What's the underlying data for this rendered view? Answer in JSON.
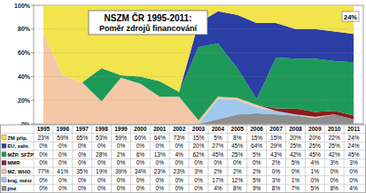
{
  "chart_data": {
    "type": "area",
    "stacked": true,
    "grid": true,
    "data_labels": true,
    "title": "NSZM ČR 1995-2011:",
    "subtitle": "Poměr zdrojů financování",
    "annotations": [
      "24%"
    ],
    "categories": [
      "1995",
      "1996",
      "1997",
      "1998",
      "1999",
      "2000",
      "2001",
      "2002",
      "2003",
      "2004",
      "2005",
      "2006",
      "2007",
      "2008",
      "2009",
      "2010",
      "2011"
    ],
    "ylim": [
      0,
      100
    ],
    "yticks": [
      {
        "value": 0,
        "label": "0%"
      },
      {
        "value": 20,
        "label": "20%"
      },
      {
        "value": 40,
        "label": "40%"
      },
      {
        "value": 60,
        "label": "60%"
      },
      {
        "value": 80,
        "label": "80%"
      },
      {
        "value": 100,
        "label": "100%"
      }
    ],
    "series": [
      {
        "name": "ZM příp.",
        "color": "#f2e44c",
        "values": [
          23,
          59,
          65,
          53,
          59,
          60,
          64,
          73,
          15,
          5,
          8,
          15,
          15,
          20,
          20,
          22,
          24
        ],
        "value_labels": [
          "23%",
          "59%",
          "65%",
          "53%",
          "59%",
          "60%",
          "64%",
          "73%",
          "15%",
          "5%",
          "8%",
          "15%",
          "15%",
          "20%",
          "20%",
          "22%",
          "24%"
        ]
      },
      {
        "name": "EU, zahr.",
        "color": "#2a3ea6",
        "values": [
          0,
          0,
          0,
          0,
          0,
          0,
          0,
          0,
          20,
          27,
          45,
          64,
          29,
          25,
          25,
          25,
          24
        ],
        "value_labels": [
          "0%",
          "0%",
          "0%",
          "0%",
          "0%",
          "0%",
          "0%",
          "0%",
          "20%",
          "27%",
          "45%",
          "64%",
          "29%",
          "25%",
          "25%",
          "25%",
          "24%"
        ]
      },
      {
        "name": "MŽP, SFŽP",
        "color": "#1e9a58",
        "values": [
          0,
          0,
          0,
          28,
          2,
          6,
          13,
          4,
          62,
          45,
          25,
          5,
          43,
          42,
          45,
          42,
          45
        ],
        "value_labels": [
          "0%",
          "0%",
          "0%",
          "28%",
          "2%",
          "6%",
          "13%",
          "4%",
          "62%",
          "45%",
          "25%",
          "5%",
          "43%",
          "42%",
          "45%",
          "42%",
          "45%"
        ]
      },
      {
        "name": "MMR",
        "color": "#8c1c1c",
        "values": [
          0,
          0,
          0,
          0,
          0,
          0,
          0,
          0,
          0,
          0,
          0,
          0,
          2,
          5,
          4,
          3,
          3
        ],
        "value_labels": [
          "0%",
          "0%",
          "0%",
          "0%",
          "0%",
          "0%",
          "0%",
          "0%",
          "0%",
          "0%",
          "0%",
          "0%",
          "2%",
          "5%",
          "4%",
          "3%",
          "3%"
        ]
      },
      {
        "name": "MZ, WHO",
        "color": "#f4c8a6",
        "values": [
          77,
          41,
          35,
          19,
          39,
          34,
          23,
          23,
          3,
          2,
          2,
          2,
          0,
          0,
          1,
          0,
          0
        ],
        "value_labels": [
          "77%",
          "41%",
          "35%",
          "19%",
          "39%",
          "34%",
          "23%",
          "23%",
          "3%",
          "2%",
          "2%",
          "2%",
          "0%",
          "0%",
          "1%",
          "0%",
          "0%"
        ]
      },
      {
        "name": "kraj, měst",
        "color": "#9fc8ee",
        "values": [
          0,
          0,
          0,
          0,
          0,
          0,
          0,
          0,
          0,
          17,
          12,
          5,
          3,
          1,
          0,
          0,
          0
        ],
        "value_labels": [
          "0%",
          "0%",
          "0%",
          "0%",
          "0%",
          "0%",
          "0%",
          "0%",
          "0%",
          "17%",
          "12%",
          "5%",
          "3%",
          "1%",
          "0%",
          "0%",
          "0%"
        ]
      },
      {
        "name": "jiné",
        "color": "#8f8f8f",
        "values": [
          0,
          0,
          0,
          0,
          0,
          0,
          0,
          0,
          0,
          4,
          8,
          9,
          8,
          7,
          5,
          8,
          4
        ],
        "value_labels": [
          "0%",
          "0%",
          "0%",
          "0%",
          "0%",
          "0%",
          "0%",
          "0%",
          "0%",
          "4%",
          "8%",
          "9%",
          "8%",
          "7%",
          "5%",
          "8%",
          "4%"
        ]
      }
    ]
  }
}
